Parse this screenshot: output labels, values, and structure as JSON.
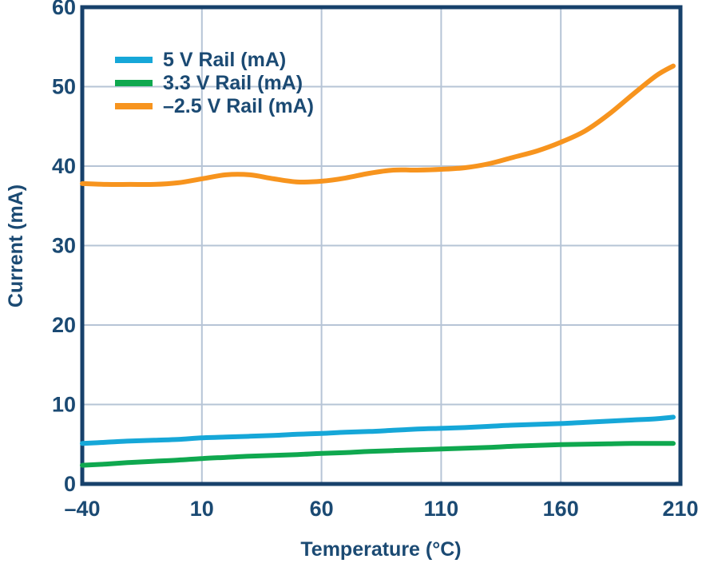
{
  "colors": {
    "text": "#1B4A73",
    "axis": "#17416B",
    "grid": "#B6C4D6",
    "background": "#FFFFFF"
  },
  "chart_data": {
    "type": "line",
    "title": "",
    "xlabel": "Temperature (°C)",
    "ylabel": "Current (mA)",
    "xlim": [
      -40,
      210
    ],
    "ylim": [
      0,
      60
    ],
    "xtick_values": [
      -40,
      10,
      60,
      110,
      160,
      210
    ],
    "xtick_labels": [
      "–40",
      "10",
      "60",
      "110",
      "160",
      "210"
    ],
    "ytick_values": [
      0,
      10,
      20,
      30,
      40,
      50,
      60
    ],
    "ytick_labels": [
      "0",
      "10",
      "20",
      "30",
      "40",
      "50",
      "60"
    ],
    "grid": true,
    "legend_position": "upper-left-inside",
    "x": [
      -40,
      -30,
      -20,
      -10,
      0,
      10,
      20,
      30,
      40,
      50,
      60,
      70,
      80,
      90,
      100,
      110,
      120,
      130,
      140,
      150,
      160,
      170,
      180,
      190,
      200,
      207
    ],
    "series": [
      {
        "id": "5v-rail",
        "name": "5 V Rail (mA)",
        "color": "#16A7D8",
        "values": [
          5.1,
          5.25,
          5.4,
          5.5,
          5.6,
          5.8,
          5.9,
          6.0,
          6.1,
          6.25,
          6.35,
          6.5,
          6.6,
          6.75,
          6.9,
          7.0,
          7.1,
          7.25,
          7.4,
          7.5,
          7.6,
          7.75,
          7.9,
          8.05,
          8.2,
          8.4
        ]
      },
      {
        "id": "3v3-rail",
        "name": "3.3 V Rail (mA)",
        "color": "#0FA84F",
        "values": [
          2.35,
          2.5,
          2.7,
          2.85,
          3.0,
          3.2,
          3.35,
          3.5,
          3.6,
          3.7,
          3.85,
          3.95,
          4.1,
          4.2,
          4.3,
          4.4,
          4.5,
          4.6,
          4.75,
          4.85,
          4.95,
          5.0,
          5.05,
          5.1,
          5.1,
          5.1
        ]
      },
      {
        "id": "neg-2v5-rail",
        "name": "–2.5 V Rail (mA)",
        "color": "#F7941E",
        "values": [
          37.8,
          37.7,
          37.7,
          37.7,
          37.9,
          38.4,
          38.9,
          38.9,
          38.4,
          38.0,
          38.1,
          38.5,
          39.1,
          39.5,
          39.5,
          39.6,
          39.8,
          40.3,
          41.1,
          41.9,
          43.0,
          44.4,
          46.5,
          49.0,
          51.4,
          52.6
        ]
      }
    ]
  }
}
